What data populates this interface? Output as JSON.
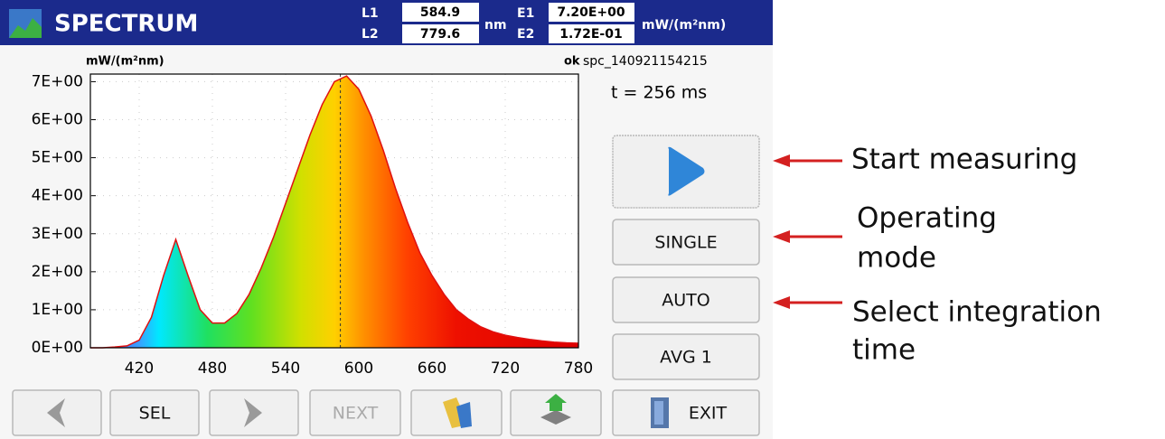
{
  "header": {
    "title": "SPECTRUM",
    "l1_label": "L1",
    "l1": 584.9,
    "l2_label": "L2",
    "l2": 779.6,
    "nm_unit": "nm",
    "e1_label": "E1",
    "e1": "7.20E+00",
    "e2_label": "E2",
    "e2": "1.72E-01",
    "e_unit": "mW/(m²nm)"
  },
  "status": {
    "state": "ok",
    "file": "spc_140921154215",
    "integration": "t = 256 ms"
  },
  "chart_data": {
    "type": "area",
    "y_label": "mW/(m²nm)",
    "x": [
      380,
      390,
      400,
      410,
      420,
      430,
      440,
      450,
      460,
      470,
      480,
      490,
      500,
      510,
      520,
      530,
      540,
      550,
      560,
      570,
      580,
      590,
      600,
      610,
      620,
      630,
      640,
      650,
      660,
      670,
      680,
      690,
      700,
      710,
      720,
      730,
      740,
      750,
      760,
      770,
      780
    ],
    "values": [
      0,
      0,
      0.02,
      0.05,
      0.2,
      0.8,
      1.9,
      2.85,
      1.9,
      1.0,
      0.65,
      0.65,
      0.9,
      1.4,
      2.1,
      2.9,
      3.8,
      4.7,
      5.6,
      6.4,
      7.0,
      7.15,
      6.8,
      6.1,
      5.2,
      4.2,
      3.3,
      2.5,
      1.9,
      1.4,
      1.0,
      0.75,
      0.55,
      0.42,
      0.33,
      0.27,
      0.22,
      0.18,
      0.15,
      0.13,
      0.12
    ],
    "color": "#e01010",
    "xlim": [
      380,
      780
    ],
    "ylim": [
      0,
      7.2
    ],
    "xticks": [
      420,
      480,
      540,
      600,
      660,
      720,
      780
    ],
    "yticks": [
      {
        "value": 0,
        "label": "0E+00"
      },
      {
        "value": 1,
        "label": "1E+00"
      },
      {
        "value": 2,
        "label": "2E+00"
      },
      {
        "value": 3,
        "label": "3E+00"
      },
      {
        "value": 4,
        "label": "4E+00"
      },
      {
        "value": 5,
        "label": "5E+00"
      },
      {
        "value": 6,
        "label": "6E+00"
      },
      {
        "value": 7,
        "label": "7E+00"
      }
    ],
    "grid": true
  },
  "side_buttons": [
    "SINGLE",
    "AUTO",
    "AVG 1"
  ],
  "bottom_buttons": {
    "sel": "SEL",
    "next": "NEXT",
    "exit": "EXIT"
  },
  "annotations": {
    "start": "Start measuring",
    "mode": [
      "Operating",
      "mode"
    ],
    "integration": [
      "Select integration",
      "time"
    ]
  }
}
